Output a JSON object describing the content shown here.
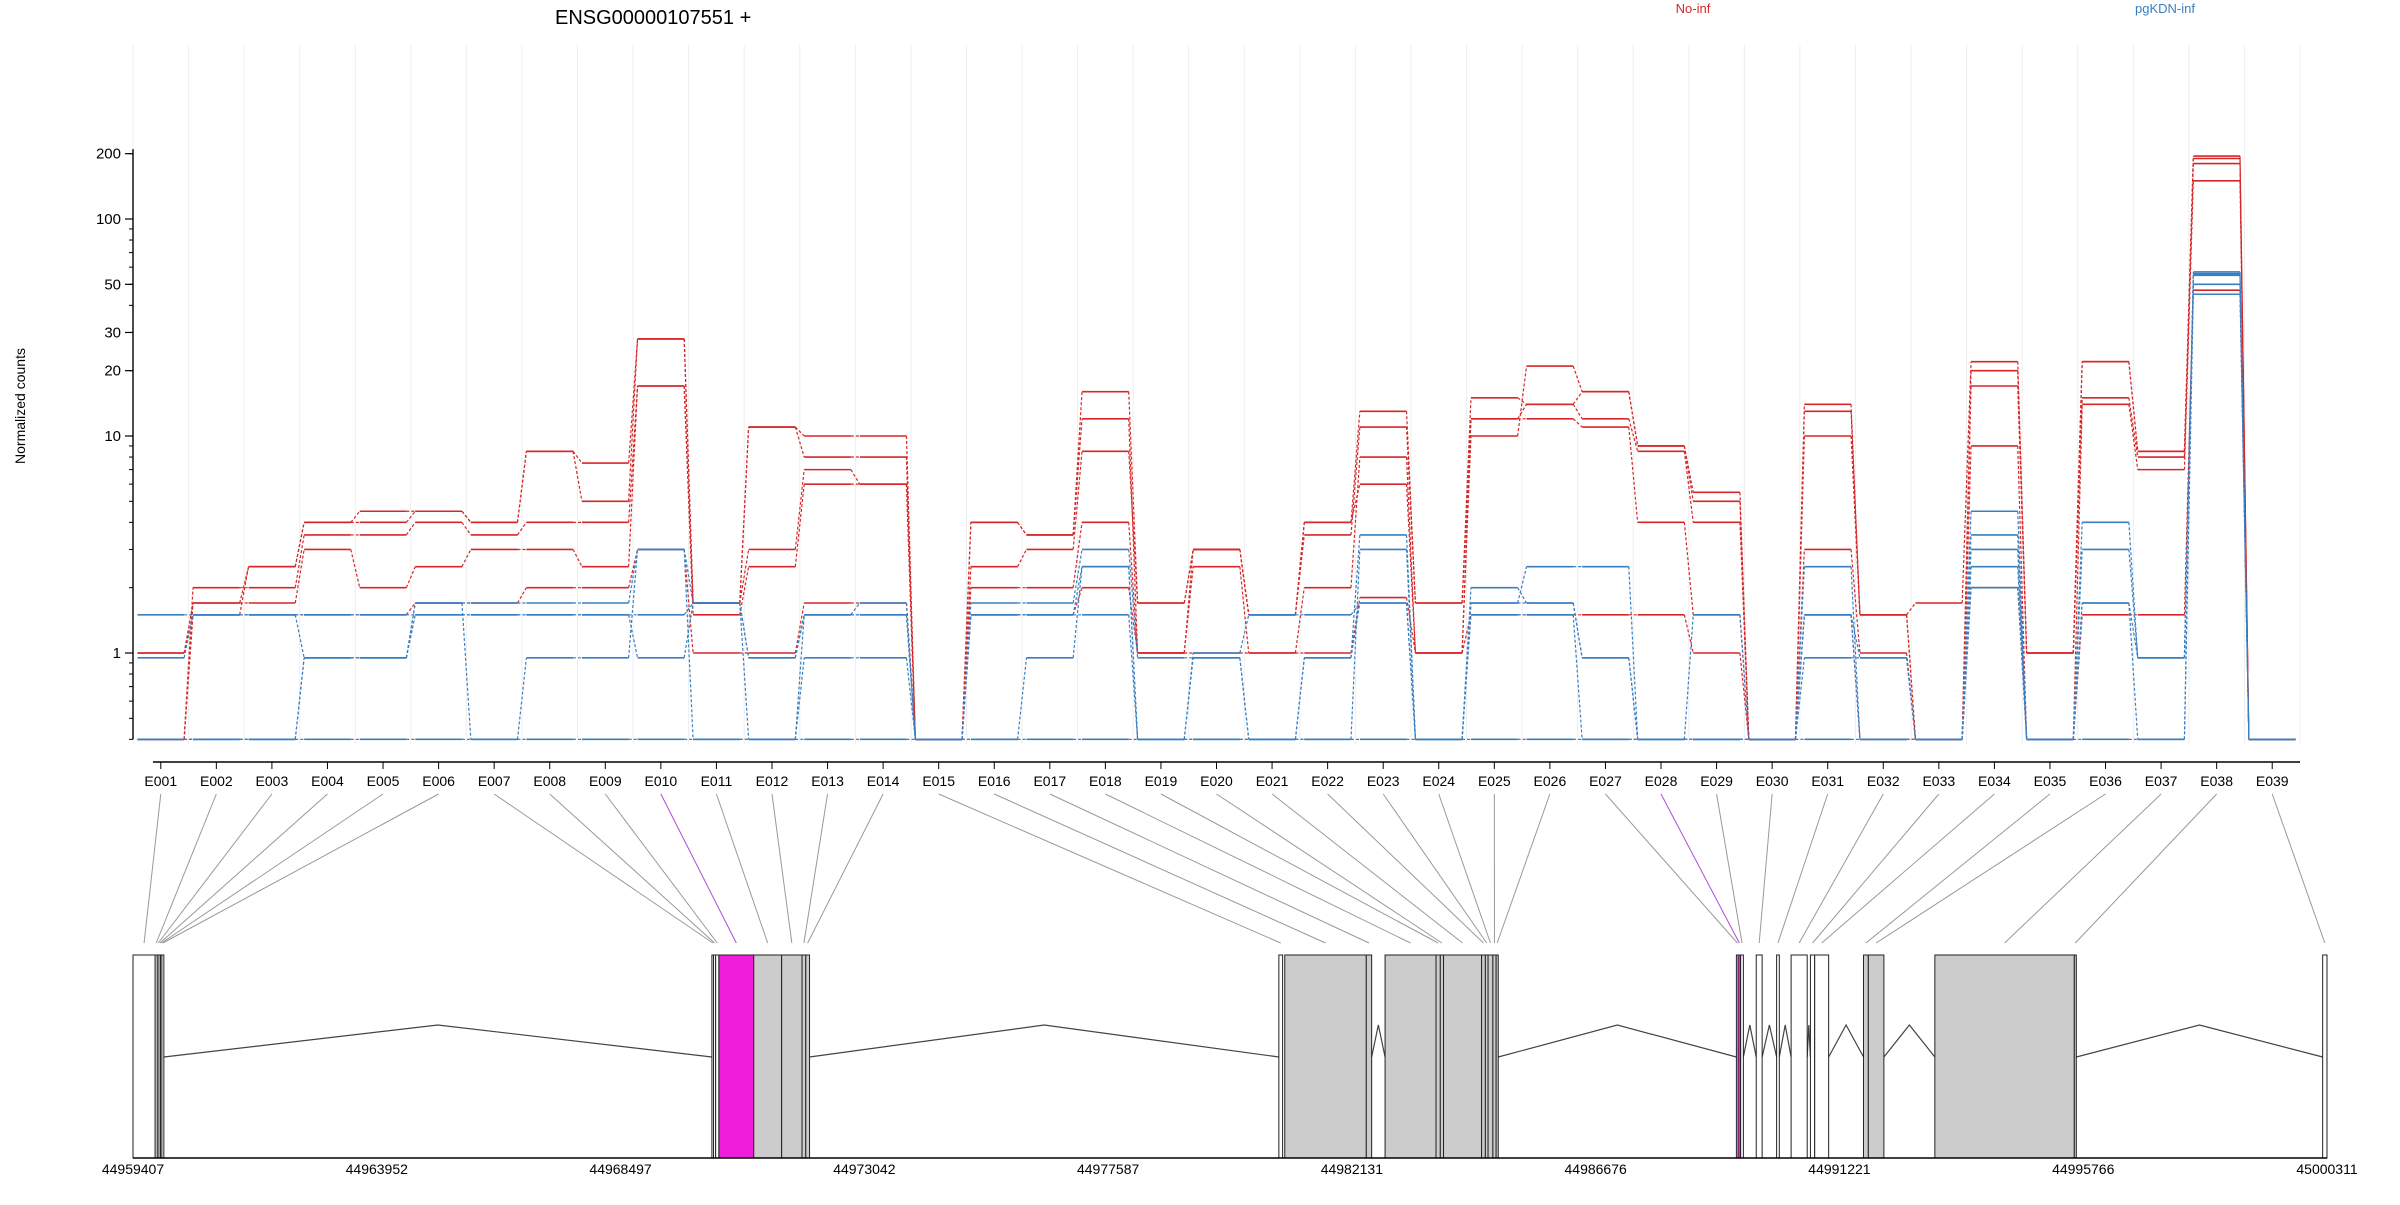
{
  "chart_data": {
    "type": "line",
    "title": "ENSG00000107551 +",
    "ylabel": "Normalized counts",
    "yscale": "log",
    "y_ticks": [
      1,
      10,
      20,
      30,
      50,
      100,
      200
    ],
    "y_tick_labels": [
      "1",
      "10",
      "20",
      "30",
      "50",
      "100",
      "200"
    ],
    "y_floor_label_hidden": true,
    "categories": [
      "E001",
      "E002",
      "E003",
      "E004",
      "E005",
      "E006",
      "E007",
      "E008",
      "E009",
      "E010",
      "E011",
      "E012",
      "E013",
      "E014",
      "E015",
      "E016",
      "E017",
      "E018",
      "E019",
      "E020",
      "E021",
      "E022",
      "E023",
      "E024",
      "E025",
      "E026",
      "E027",
      "E028",
      "E029",
      "E030",
      "E031",
      "E032",
      "E033",
      "E034",
      "E035",
      "E036",
      "E037",
      "E038",
      "E039"
    ],
    "highlighted_exons": [
      "E010",
      "E028"
    ],
    "groups": [
      {
        "name": "No-inf",
        "color": "#d62728"
      },
      {
        "name": "pgKDN-inf",
        "color": "#3a7fc1"
      }
    ],
    "floor_value": 0.4,
    "series": [
      {
        "group": "No-inf",
        "values": [
          1.0,
          1.5,
          1.5,
          1.5,
          1.5,
          1.7,
          1.7,
          2.0,
          2.0,
          3.0,
          1.0,
          1.0,
          1.7,
          1.7,
          0.4,
          1.5,
          1.5,
          2.0,
          1.0,
          1.0,
          1.0,
          1.0,
          1.8,
          1.0,
          1.5,
          1.5,
          1.5,
          1.5,
          1.0,
          0.4,
          1.5,
          0.4,
          0.4,
          2.0,
          0.4,
          1.5,
          1.5,
          47,
          0.4
        ]
      },
      {
        "group": "No-inf",
        "values": [
          1.0,
          1.7,
          1.7,
          3.0,
          2.0,
          2.5,
          3.0,
          3.0,
          2.5,
          17,
          1.5,
          2.5,
          6.0,
          6.0,
          0.4,
          2.0,
          2.0,
          4.0,
          1.0,
          2.5,
          1.0,
          2.0,
          8.0,
          1.0,
          12,
          12,
          11,
          4.0,
          1.5,
          0.4,
          3.0,
          1.0,
          0.4,
          9.0,
          0.4,
          14,
          7.0,
          150,
          0.4
        ]
      },
      {
        "group": "No-inf",
        "values": [
          0.4,
          2.0,
          2.0,
          3.5,
          3.5,
          4.0,
          3.5,
          4.0,
          4.0,
          17,
          1.7,
          3.0,
          7.0,
          6.0,
          0.4,
          2.5,
          3.0,
          8.5,
          1.7,
          3.0,
          1.5,
          3.5,
          11,
          1.7,
          12,
          14,
          12,
          8.5,
          4.0,
          0.4,
          10,
          1.5,
          0.4,
          17,
          1.0,
          15,
          8.0,
          180,
          0.4
        ]
      },
      {
        "group": "No-inf",
        "values": [
          0.4,
          1.5,
          2.5,
          4.0,
          4.0,
          4.5,
          4.0,
          8.5,
          5.0,
          28,
          1.7,
          11,
          8.0,
          8.0,
          0.4,
          4.0,
          3.5,
          12,
          1.0,
          3.0,
          1.5,
          4.0,
          6.0,
          1.0,
          10,
          21,
          16,
          9.0,
          5.0,
          0.4,
          13,
          1.5,
          0.4,
          20,
          1.0,
          22,
          8.5,
          190,
          0.4
        ]
      },
      {
        "group": "No-inf",
        "values": [
          0.4,
          1.7,
          2.5,
          4.0,
          4.5,
          4.5,
          4.0,
          8.5,
          7.5,
          28,
          1.7,
          11,
          10,
          10,
          0.4,
          4.0,
          3.5,
          16,
          1.7,
          3.0,
          1.5,
          4.0,
          13,
          1.7,
          15,
          14,
          16,
          9.0,
          5.5,
          0.4,
          14,
          1.5,
          1.7,
          22,
          1.0,
          22,
          8.5,
          195,
          0.4
        ]
      },
      {
        "group": "pgKDN-inf",
        "values": [
          1.5,
          1.5,
          1.5,
          1.5,
          1.5,
          1.5,
          1.5,
          1.5,
          1.5,
          1.5,
          1.7,
          0.4,
          1.5,
          1.5,
          0.4,
          1.5,
          1.5,
          1.5,
          0.4,
          1.0,
          1.5,
          1.5,
          1.7,
          0.4,
          1.5,
          1.5,
          0.4,
          0.4,
          1.5,
          0.4,
          1.5,
          0.4,
          0.4,
          2.0,
          0.4,
          1.7,
          0.4,
          45,
          0.4
        ]
      },
      {
        "group": "pgKDN-inf",
        "values": [
          0.95,
          1.5,
          1.5,
          0.95,
          0.95,
          1.5,
          1.5,
          1.5,
          1.5,
          0.95,
          1.7,
          0.95,
          1.5,
          1.5,
          0.4,
          1.5,
          1.5,
          2.5,
          0.4,
          0.4,
          0.4,
          0.95,
          1.7,
          0.4,
          1.7,
          1.7,
          0.95,
          0.4,
          0.4,
          0.4,
          0.95,
          0.95,
          0.4,
          2.5,
          0.4,
          1.7,
          0.95,
          50,
          0.4
        ]
      },
      {
        "group": "pgKDN-inf",
        "values": [
          0.4,
          0.4,
          0.4,
          0.95,
          0.95,
          1.7,
          1.7,
          1.7,
          1.7,
          3.0,
          1.7,
          0.95,
          1.5,
          1.7,
          0.4,
          1.7,
          1.7,
          3.0,
          0.95,
          0.95,
          0.4,
          0.95,
          3.5,
          0.4,
          2.0,
          1.7,
          0.95,
          0.4,
          0.4,
          0.4,
          1.5,
          0.95,
          0.4,
          3.0,
          0.4,
          3.0,
          0.95,
          55,
          0.4
        ]
      },
      {
        "group": "pgKDN-inf",
        "values": [
          0.4,
          0.4,
          0.4,
          0.95,
          0.95,
          1.7,
          0.4,
          0.95,
          0.95,
          3.0,
          0.4,
          0.4,
          0.95,
          0.95,
          0.4,
          0.4,
          0.95,
          2.5,
          0.4,
          0.95,
          0.4,
          0.4,
          3.0,
          0.4,
          1.7,
          2.5,
          2.5,
          0.4,
          0.4,
          0.4,
          2.5,
          0.4,
          0.4,
          3.5,
          0.4,
          4.0,
          0.95,
          56,
          0.4
        ]
      },
      {
        "group": "pgKDN-inf",
        "values": [
          0.4,
          0.4,
          0.4,
          0.4,
          0.4,
          0.4,
          0.4,
          0.4,
          0.4,
          0.4,
          0.4,
          0.4,
          0.4,
          0.4,
          0.4,
          0.4,
          0.4,
          0.4,
          0.4,
          0.4,
          0.4,
          0.4,
          0.4,
          0.4,
          0.4,
          0.4,
          0.4,
          0.4,
          0.4,
          0.4,
          0.4,
          0.4,
          0.4,
          4.5,
          0.4,
          0.4,
          0.4,
          57,
          0.4
        ]
      }
    ],
    "gene_model": {
      "start": 44959407,
      "end": 45000311,
      "axis_ticks": [
        44959407,
        44963952,
        44968497,
        44973042,
        44977587,
        44982131,
        44986676,
        44991221,
        44995766,
        45000311
      ],
      "exons": [
        {
          "id": "E001",
          "start": 44959407,
          "end": 44959820,
          "fill": "#ffffff"
        },
        {
          "id": "E002",
          "start": 44959820,
          "end": 44959860,
          "fill": "#ffffff"
        },
        {
          "id": "E003",
          "start": 44959860,
          "end": 44959890,
          "fill": "#ffffff"
        },
        {
          "id": "E004",
          "start": 44959890,
          "end": 44959920,
          "fill": "#ffffff"
        },
        {
          "id": "E005",
          "start": 44959920,
          "end": 44959945,
          "fill": "#ffffff"
        },
        {
          "id": "E006",
          "start": 44959945,
          "end": 44959975,
          "fill": "#ffffff"
        },
        {
          "id": "E007",
          "start": 44970200,
          "end": 44970230,
          "fill": "#ffffff"
        },
        {
          "id": "E008",
          "start": 44970230,
          "end": 44970270,
          "fill": "#ffffff"
        },
        {
          "id": "E009",
          "start": 44970270,
          "end": 44970330,
          "fill": "#ffffff"
        },
        {
          "id": "E010",
          "start": 44970330,
          "end": 44970980,
          "fill": "#f01edb"
        },
        {
          "id": "E011",
          "start": 44970980,
          "end": 44971500,
          "fill": "#cccccc"
        },
        {
          "id": "E012",
          "start": 44971500,
          "end": 44971880,
          "fill": "#cccccc"
        },
        {
          "id": "E013",
          "start": 44971880,
          "end": 44971950,
          "fill": "#cccccc"
        },
        {
          "id": "E014",
          "start": 44971950,
          "end": 44972020,
          "fill": "#cccccc"
        },
        {
          "id": "E015",
          "start": 44980770,
          "end": 44980840,
          "fill": "#ffffff"
        },
        {
          "id": "E016",
          "start": 44980880,
          "end": 44982400,
          "fill": "#cccccc"
        },
        {
          "id": "E017",
          "start": 44982400,
          "end": 44982500,
          "fill": "#cccccc"
        },
        {
          "id": "E018",
          "start": 44982750,
          "end": 44983700,
          "fill": "#cccccc"
        },
        {
          "id": "E019",
          "start": 44983700,
          "end": 44983780,
          "fill": "#cccccc"
        },
        {
          "id": "E020",
          "start": 44983780,
          "end": 44983840,
          "fill": "#cccccc"
        },
        {
          "id": "E021",
          "start": 44983840,
          "end": 44984550,
          "fill": "#cccccc"
        },
        {
          "id": "E022",
          "start": 44984550,
          "end": 44984620,
          "fill": "#cccccc"
        },
        {
          "id": "E023",
          "start": 44984620,
          "end": 44984670,
          "fill": "#cccccc"
        },
        {
          "id": "E024",
          "start": 44984670,
          "end": 44984760,
          "fill": "#cccccc"
        },
        {
          "id": "E025",
          "start": 44984760,
          "end": 44984820,
          "fill": "#cccccc"
        },
        {
          "id": "E026",
          "start": 44984820,
          "end": 44984860,
          "fill": "#cccccc"
        },
        {
          "id": "E027",
          "start": 44989300,
          "end": 44989330,
          "fill": "#ffffff"
        },
        {
          "id": "E028",
          "start": 44989330,
          "end": 44989380,
          "fill": "#f01edb"
        },
        {
          "id": "E029",
          "start": 44989380,
          "end": 44989430,
          "fill": "#ffffff"
        },
        {
          "id": "E030",
          "start": 44989670,
          "end": 44989780,
          "fill": "#ffffff"
        },
        {
          "id": "E031",
          "start": 44990050,
          "end": 44990100,
          "fill": "#ffffff"
        },
        {
          "id": "E032",
          "start": 44990320,
          "end": 44990620,
          "fill": "#ffffff"
        },
        {
          "id": "E033",
          "start": 44990680,
          "end": 44990760,
          "fill": "#ffffff"
        },
        {
          "id": "E034",
          "start": 44990760,
          "end": 44991020,
          "fill": "#ffffff"
        },
        {
          "id": "E035",
          "start": 44991670,
          "end": 44991760,
          "fill": "#cccccc"
        },
        {
          "id": "E036",
          "start": 44991760,
          "end": 44992050,
          "fill": "#cccccc"
        },
        {
          "id": "E037",
          "start": 44993000,
          "end": 44995600,
          "fill": "#cccccc"
        },
        {
          "id": "E038",
          "start": 44995600,
          "end": 44995620,
          "fill": "#cccccc"
        },
        {
          "id": "E039",
          "start": 45000230,
          "end": 45000311,
          "fill": "#ffffff"
        }
      ]
    }
  }
}
